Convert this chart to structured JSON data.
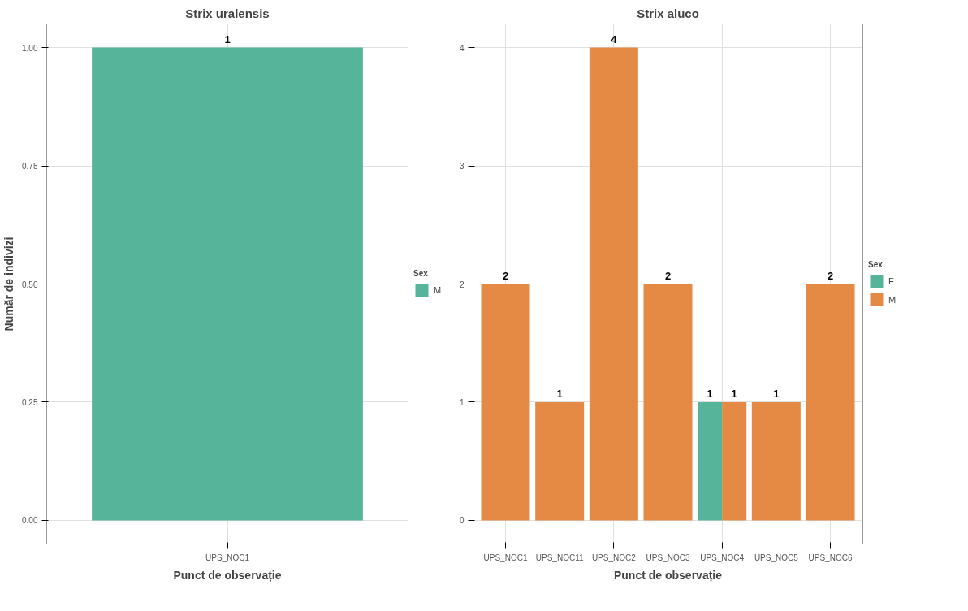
{
  "chart_data": [
    {
      "type": "bar",
      "title": "Strix uralensis",
      "xlabel": "Punct de observație",
      "ylabel": "Număr de indivizi",
      "legend_title": "Sex",
      "categories": [
        "UPS_NOC1"
      ],
      "series": [
        {
          "name": "M",
          "color": "#56b49a",
          "values": [
            1
          ]
        }
      ],
      "ylim": [
        -0.05,
        1.05
      ],
      "yticks": [
        {
          "value": 0,
          "label": "0.00"
        },
        {
          "value": 0.25,
          "label": "0.25"
        },
        {
          "value": 0.5,
          "label": "0.50"
        },
        {
          "value": 0.75,
          "label": "0.75"
        },
        {
          "value": 1,
          "label": "1.00"
        }
      ],
      "grid": true,
      "legend": "right",
      "data_labels": true
    },
    {
      "type": "bar",
      "title": "Strix aluco",
      "xlabel": "Punct de observație",
      "legend_title": "Sex",
      "categories": [
        "UPS_NOC1",
        "UPS_NOC11",
        "UPS_NOC2",
        "UPS_NOC3",
        "UPS_NOC4",
        "UPS_NOC5",
        "UPS_NOC6"
      ],
      "series": [
        {
          "name": "F",
          "color": "#56b49a",
          "values": [
            null,
            null,
            null,
            null,
            1,
            null,
            null
          ]
        },
        {
          "name": "M",
          "color": "#e58a44",
          "values": [
            2,
            1,
            4,
            2,
            1,
            1,
            2
          ]
        }
      ],
      "ylim": [
        -0.2,
        4.2
      ],
      "yticks": [
        0,
        1,
        2,
        3,
        4
      ],
      "grid": true,
      "legend": "right",
      "data_labels": true
    }
  ]
}
